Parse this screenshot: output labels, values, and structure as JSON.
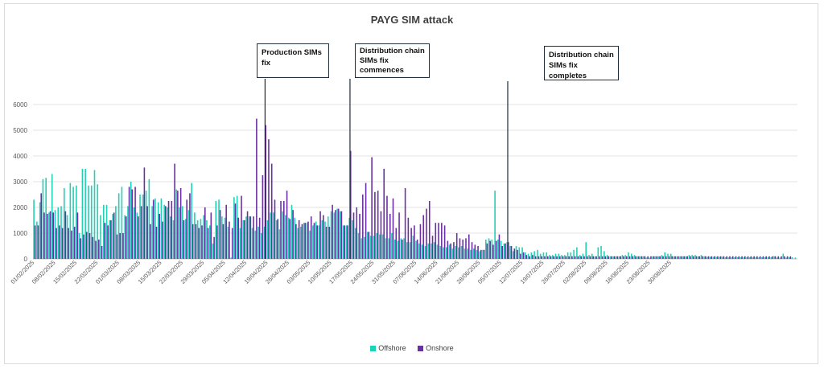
{
  "chart_data": {
    "type": "bar",
    "title": "PAYG SIM attack",
    "ylim": [
      0,
      6000
    ],
    "yticks": [
      0,
      1000,
      2000,
      3000,
      4000,
      5000,
      6000
    ],
    "xtick_labels": [
      "01/02/2025",
      "08/02/2025",
      "15/02/2025",
      "22/02/2025",
      "01/03/2025",
      "08/03/2025",
      "15/03/2025",
      "22/03/2025",
      "29/03/2025",
      "05/04/2025",
      "12/04/2025",
      "19/04/2025",
      "26/04/2025",
      "03/05/2025",
      "10/05/2025",
      "17/05/2025",
      "24/05/2025",
      "31/05/2025",
      "07/06/2025",
      "14/06/2025",
      "21/06/2025",
      "28/06/2025",
      "05/07/2025",
      "12/07/2025",
      "19/07/2025",
      "26/07/2025",
      "02/08/2025",
      "09/08/2025",
      "16/08/2025",
      "23/08/2025",
      "30/08/2025"
    ],
    "grid": true,
    "legend_position": "bottom",
    "series": [
      {
        "name": "Offshore",
        "color": "#1fd1b5",
        "values": [
          2300,
          1450,
          2200,
          3100,
          3150,
          1800,
          3300,
          1900,
          2000,
          2050,
          2750,
          1700,
          2950,
          2800,
          2850,
          1000,
          3500,
          3500,
          2850,
          2850,
          3450,
          2900,
          1700,
          2100,
          2100,
          1500,
          1750,
          2050,
          2550,
          2800,
          1700,
          2050,
          3000,
          2000,
          1800,
          2500,
          2500,
          2650,
          3100,
          2050,
          2350,
          2200,
          2350,
          2100,
          2000,
          1650,
          1500,
          2700,
          2000,
          2050,
          1550,
          1900,
          2950,
          1800,
          1500,
          1550,
          1700,
          1500,
          1300,
          600,
          2250,
          2300,
          1650,
          1600,
          1250,
          50,
          2400,
          2450,
          1200,
          1500,
          1650,
          1650,
          1200,
          1100,
          1250,
          1000,
          1250,
          1500,
          1800,
          1800,
          1500,
          1150,
          1850,
          1700,
          1600,
          2100,
          1600,
          1200,
          1250,
          1400,
          1400,
          1100,
          1300,
          1450,
          1300,
          1500,
          1450,
          1650,
          1850,
          1800,
          1950,
          1850,
          1300,
          1300,
          1600,
          1500,
          1200,
          1000,
          800,
          850,
          1050,
          900,
          900,
          1000,
          950,
          950,
          800,
          800,
          1000,
          750,
          700,
          800,
          800,
          650,
          650,
          900,
          700,
          600,
          550,
          500,
          600,
          600,
          650,
          550,
          500,
          450,
          450,
          550,
          400,
          500,
          450,
          500,
          400,
          400,
          350,
          400,
          350,
          300,
          350,
          750,
          800,
          750,
          2650,
          750,
          700,
          600,
          650,
          500,
          300,
          500,
          450,
          450,
          250,
          200,
          250,
          300,
          350,
          200,
          250,
          250,
          150,
          150,
          200,
          200,
          150,
          150,
          250,
          250,
          350,
          450,
          150,
          200,
          650,
          150,
          200,
          100,
          450,
          500,
          300,
          150,
          100,
          100,
          100,
          100,
          150,
          150,
          250,
          200,
          150,
          100,
          100,
          100,
          50,
          50,
          100,
          100,
          100,
          150,
          250,
          200,
          200,
          100,
          100,
          100,
          100,
          100,
          150,
          150,
          150,
          100,
          150,
          100,
          80,
          80,
          80,
          80,
          80,
          80,
          60,
          60,
          60,
          60,
          60,
          60,
          60,
          60,
          60,
          60,
          60,
          60,
          60,
          60,
          60,
          60,
          100,
          50,
          50,
          200,
          50,
          60,
          60,
          50
        ]
      },
      {
        "name": "Onshore",
        "color": "#6b2fa3",
        "values": [
          1300,
          1300,
          2550,
          1800,
          1750,
          1850,
          1800,
          1200,
          1300,
          1200,
          1850,
          1200,
          1100,
          1250,
          1800,
          800,
          950,
          1050,
          1000,
          850,
          700,
          750,
          500,
          1400,
          1300,
          1500,
          1800,
          950,
          1000,
          1000,
          1650,
          2800,
          2700,
          2800,
          1650,
          2050,
          3550,
          2050,
          1350,
          2300,
          1250,
          1750,
          1450,
          2050,
          2250,
          2250,
          3700,
          2650,
          2750,
          1500,
          2300,
          2550,
          1350,
          1350,
          1200,
          1300,
          2000,
          1200,
          1800,
          850,
          1300,
          1900,
          1350,
          2100,
          1450,
          1200,
          2150,
          1600,
          2450,
          1500,
          1850,
          1650,
          1650,
          5450,
          1600,
          3250,
          5200,
          4650,
          3700,
          2300,
          1550,
          2250,
          2250,
          2650,
          1550,
          1900,
          1350,
          1500,
          1350,
          1400,
          1450,
          1650,
          1400,
          1300,
          1850,
          1700,
          1250,
          1250,
          2100,
          1900,
          1950,
          1850,
          1300,
          1300,
          4200,
          1800,
          2000,
          1750,
          2500,
          2950,
          1050,
          3950,
          2600,
          2650,
          1850,
          3500,
          2450,
          1750,
          2350,
          1200,
          1800,
          750,
          2750,
          1600,
          1200,
          1300,
          750,
          1350,
          1700,
          1950,
          2250,
          900,
          1400,
          1400,
          1400,
          1300,
          700,
          600,
          650,
          1000,
          800,
          750,
          800,
          950,
          650,
          550,
          500,
          350,
          350,
          600,
          700,
          550,
          700,
          950,
          500,
          600,
          650,
          500,
          400,
          350,
          200,
          250,
          150,
          100,
          150,
          100,
          100,
          100,
          100,
          100,
          100,
          100,
          100,
          100,
          100,
          100,
          100,
          100,
          100,
          100,
          100,
          100,
          100,
          100,
          100,
          100,
          100,
          100,
          100,
          100,
          100,
          100,
          100,
          100,
          100,
          100,
          100,
          100,
          100,
          100,
          100,
          100,
          100,
          100,
          100,
          100,
          100,
          100,
          100,
          100,
          100,
          100,
          100,
          100,
          100,
          100,
          100,
          100,
          100,
          100,
          100,
          100,
          100,
          100,
          100,
          100,
          100,
          100,
          100,
          100,
          100,
          100,
          100,
          100,
          100,
          100,
          100,
          100,
          100,
          100,
          100,
          100,
          100,
          100,
          100,
          100,
          100,
          100,
          100,
          100
        ]
      }
    ],
    "annotations": [
      {
        "lines": [
          "Production SIMs",
          "fix"
        ],
        "at_bar": 76
      },
      {
        "lines": [
          "Distribution chain",
          "SIMs fix",
          "commences"
        ],
        "at_bar": 104
      },
      {
        "lines": [
          "Distribution chain",
          "SIMs fix completes"
        ],
        "at_bar": 156
      }
    ]
  }
}
